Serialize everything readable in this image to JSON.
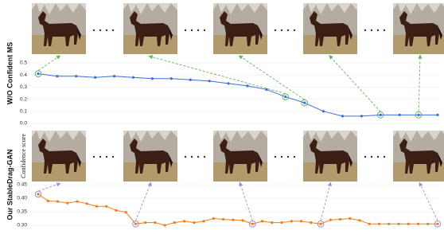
{
  "chart_data": [
    {
      "type": "line",
      "ylabel": "W/O Confident MS",
      "series": [
        {
          "color": "#3a6fd8",
          "values": [
            0.41,
            0.39,
            0.39,
            0.38,
            0.39,
            0.38,
            0.37,
            0.37,
            0.36,
            0.35,
            0.33,
            0.31,
            0.28,
            0.22,
            0.17,
            0.1,
            0.06,
            0.06,
            0.07,
            0.07,
            0.07,
            0.07
          ]
        }
      ],
      "ylim": [
        0,
        0.5
      ],
      "yticks": [
        {
          "value": 0,
          "label": "0.0"
        },
        0.1,
        0.2,
        0.3,
        0.4,
        0.5
      ],
      "grid": true,
      "highlight": [
        0,
        13,
        14,
        18,
        20
      ],
      "highlight_color": "#62b85a"
    },
    {
      "type": "line",
      "ylabel": "Our StableDrag-GAN",
      "ylabel2": "Confidence score",
      "series": [
        {
          "color": "#f07c1c",
          "values": [
            0.415,
            0.39,
            0.388,
            0.382,
            0.388,
            0.38,
            0.37,
            0.37,
            0.355,
            0.348,
            0.305,
            0.31,
            0.31,
            0.3,
            0.31,
            0.315,
            0.31,
            0.315,
            0.325,
            0.322,
            0.32,
            0.318,
            0.305,
            0.315,
            0.31,
            0.31,
            0.315,
            0.315,
            0.31,
            0.305,
            0.32,
            0.322,
            0.325,
            0.318,
            0.305,
            0.305,
            0.305,
            0.305,
            0.305,
            0.305,
            0.305,
            0.305
          ]
        }
      ],
      "ylim": [
        0.3,
        0.45
      ],
      "yticks": [
        {
          "value": 0.3,
          "label": "0.30"
        },
        0.35,
        {
          "value": 0.4,
          "label": "0.40"
        },
        0.45
      ],
      "grid": true,
      "highlight": [
        0,
        10,
        22,
        29,
        41
      ],
      "highlight_color": "#9d8fda"
    }
  ]
}
